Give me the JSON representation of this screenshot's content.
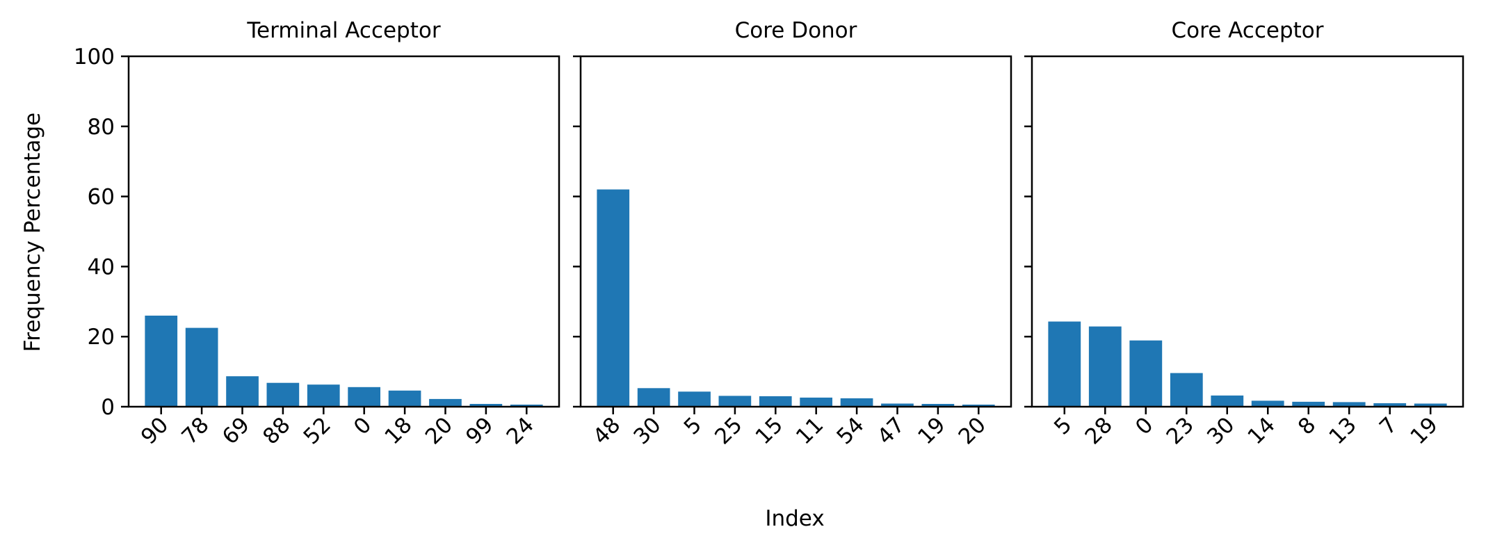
{
  "xlabel": "Index",
  "ylabel": "Frequency Percentage",
  "bar_color": "#1f77b4",
  "chart_data": [
    {
      "type": "bar",
      "title": "Terminal Acceptor",
      "categories": [
        "90",
        "78",
        "69",
        "88",
        "52",
        "0",
        "18",
        "20",
        "99",
        "24"
      ],
      "values": [
        26.0,
        22.5,
        8.7,
        6.8,
        6.3,
        5.6,
        4.6,
        2.2,
        0.8,
        0.6
      ],
      "ylim": [
        0,
        100
      ],
      "yticks": [
        "0",
        "20",
        "40",
        "60",
        "80",
        "100"
      ]
    },
    {
      "type": "bar",
      "title": "Core Donor",
      "categories": [
        "48",
        "30",
        "5",
        "25",
        "15",
        "11",
        "54",
        "47",
        "19",
        "20"
      ],
      "values": [
        62.0,
        5.3,
        4.3,
        3.1,
        3.0,
        2.6,
        2.4,
        0.9,
        0.8,
        0.6
      ],
      "ylim": [
        0,
        100
      ]
    },
    {
      "type": "bar",
      "title": "Core Acceptor",
      "categories": [
        "5",
        "28",
        "0",
        "23",
        "30",
        "14",
        "8",
        "13",
        "7",
        "19"
      ],
      "values": [
        24.3,
        22.9,
        18.9,
        9.6,
        3.2,
        1.7,
        1.4,
        1.3,
        1.0,
        0.9
      ],
      "ylim": [
        0,
        100
      ]
    }
  ]
}
